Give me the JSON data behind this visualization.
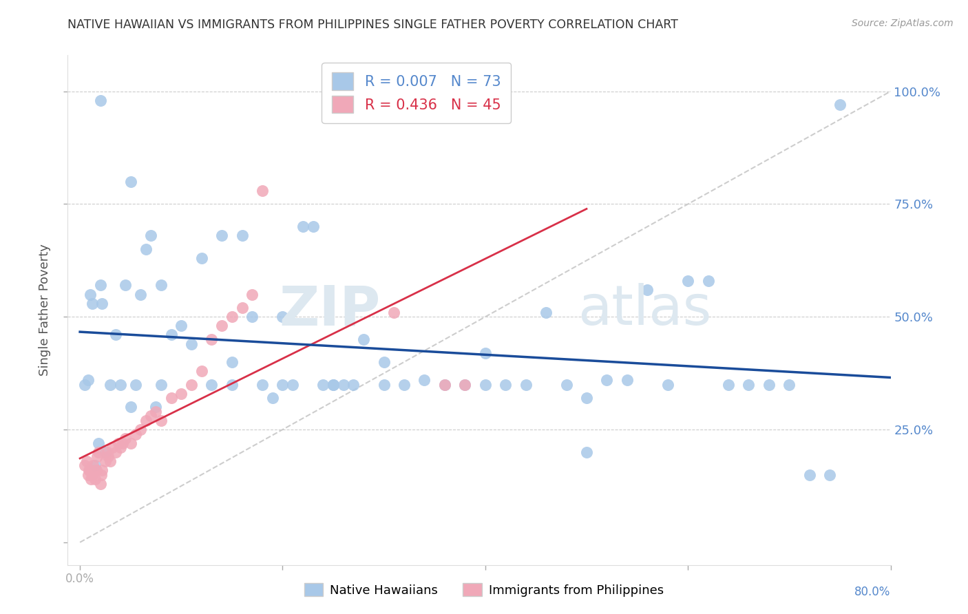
{
  "title": "NATIVE HAWAIIAN VS IMMIGRANTS FROM PHILIPPINES SINGLE FATHER POVERTY CORRELATION CHART",
  "source": "Source: ZipAtlas.com",
  "ylabel": "Single Father Poverty",
  "legend_label1": "Native Hawaiians",
  "legend_label2": "Immigrants from Philippines",
  "R1": 0.007,
  "N1": 73,
  "R2": 0.436,
  "N2": 45,
  "color_blue": "#A8C8E8",
  "color_pink": "#F0A8B8",
  "trendline_blue": "#1A4C9A",
  "trendline_pink": "#D83048",
  "dashed_line_color": "#C8C8C8",
  "grid_color": "#CCCCCC",
  "title_color": "#333333",
  "axis_label_color": "#5588CC",
  "watermark_color": "#DDE8F0",
  "blue_scatter_x": [
    0.005,
    0.008,
    0.01,
    0.012,
    0.015,
    0.018,
    0.02,
    0.022,
    0.025,
    0.03,
    0.035,
    0.04,
    0.045,
    0.05,
    0.055,
    0.06,
    0.065,
    0.07,
    0.075,
    0.08,
    0.09,
    0.1,
    0.11,
    0.12,
    0.13,
    0.14,
    0.15,
    0.16,
    0.17,
    0.18,
    0.19,
    0.2,
    0.21,
    0.22,
    0.23,
    0.24,
    0.25,
    0.26,
    0.27,
    0.28,
    0.3,
    0.32,
    0.34,
    0.36,
    0.38,
    0.4,
    0.42,
    0.44,
    0.46,
    0.48,
    0.5,
    0.52,
    0.54,
    0.56,
    0.58,
    0.6,
    0.62,
    0.64,
    0.66,
    0.68,
    0.7,
    0.72,
    0.74,
    0.02,
    0.05,
    0.08,
    0.15,
    0.2,
    0.25,
    0.3,
    0.4,
    0.5,
    0.75
  ],
  "blue_scatter_y": [
    0.35,
    0.36,
    0.55,
    0.53,
    0.17,
    0.22,
    0.57,
    0.53,
    0.2,
    0.35,
    0.46,
    0.35,
    0.57,
    0.3,
    0.35,
    0.55,
    0.65,
    0.68,
    0.3,
    0.35,
    0.46,
    0.48,
    0.44,
    0.63,
    0.35,
    0.68,
    0.4,
    0.68,
    0.5,
    0.35,
    0.32,
    0.5,
    0.35,
    0.7,
    0.7,
    0.35,
    0.35,
    0.35,
    0.35,
    0.45,
    0.35,
    0.35,
    0.36,
    0.35,
    0.35,
    0.35,
    0.35,
    0.35,
    0.51,
    0.35,
    0.32,
    0.36,
    0.36,
    0.56,
    0.35,
    0.58,
    0.58,
    0.35,
    0.35,
    0.35,
    0.35,
    0.15,
    0.15,
    0.98,
    0.8,
    0.57,
    0.35,
    0.35,
    0.35,
    0.4,
    0.42,
    0.2,
    0.97
  ],
  "pink_scatter_x": [
    0.005,
    0.007,
    0.008,
    0.009,
    0.01,
    0.011,
    0.012,
    0.013,
    0.015,
    0.016,
    0.017,
    0.018,
    0.02,
    0.021,
    0.022,
    0.025,
    0.027,
    0.028,
    0.03,
    0.032,
    0.035,
    0.038,
    0.04,
    0.042,
    0.045,
    0.05,
    0.055,
    0.06,
    0.065,
    0.07,
    0.075,
    0.08,
    0.09,
    0.1,
    0.11,
    0.12,
    0.13,
    0.14,
    0.15,
    0.16,
    0.17,
    0.18,
    0.31,
    0.36,
    0.38
  ],
  "pink_scatter_y": [
    0.17,
    0.18,
    0.15,
    0.16,
    0.16,
    0.14,
    0.15,
    0.17,
    0.14,
    0.16,
    0.19,
    0.2,
    0.13,
    0.15,
    0.16,
    0.18,
    0.2,
    0.19,
    0.18,
    0.21,
    0.2,
    0.22,
    0.21,
    0.22,
    0.23,
    0.22,
    0.24,
    0.25,
    0.27,
    0.28,
    0.29,
    0.27,
    0.32,
    0.33,
    0.35,
    0.38,
    0.45,
    0.48,
    0.5,
    0.52,
    0.55,
    0.78,
    0.51,
    0.35,
    0.35
  ]
}
